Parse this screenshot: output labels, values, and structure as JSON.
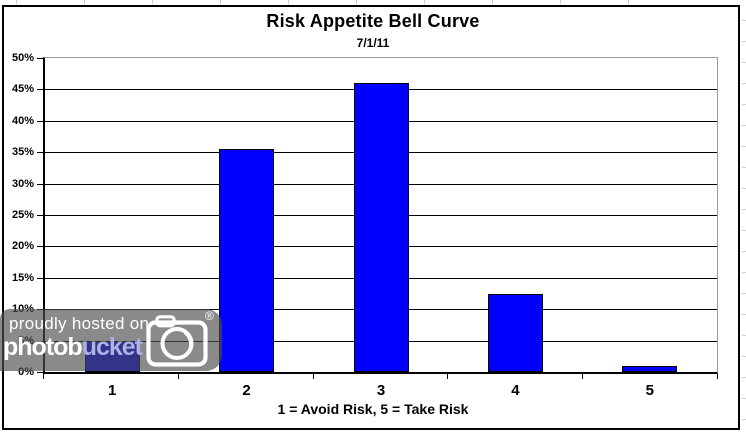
{
  "chart_data": {
    "type": "bar",
    "title": "Risk Appetite Bell Curve",
    "subtitle": "7/1/11",
    "xlabel": "1 = Avoid Risk, 5 = Take Risk",
    "ylabel": "",
    "categories": [
      "1",
      "2",
      "3",
      "4",
      "5"
    ],
    "values": [
      5,
      35.5,
      46,
      12.5,
      1
    ],
    "unit": "percent",
    "ylim": [
      0,
      50
    ],
    "ytick_step": 5,
    "ytick_labels": [
      "0%",
      "5%",
      "10%",
      "15%",
      "20%",
      "25%",
      "30%",
      "35%",
      "40%",
      "45%",
      "50%"
    ],
    "grid": true,
    "legend": false,
    "bar_color": "#0000FE",
    "bar_border_color": "#000000",
    "gridline_color": "#000000",
    "plot_border_gray": "#9B9B9B"
  },
  "watermark": {
    "tagline": "proudly hosted on",
    "brand_white": "photob",
    "brand_accent": "ucket",
    "registered_mark": "®",
    "brand_accent_color": "#A9B3E6"
  }
}
